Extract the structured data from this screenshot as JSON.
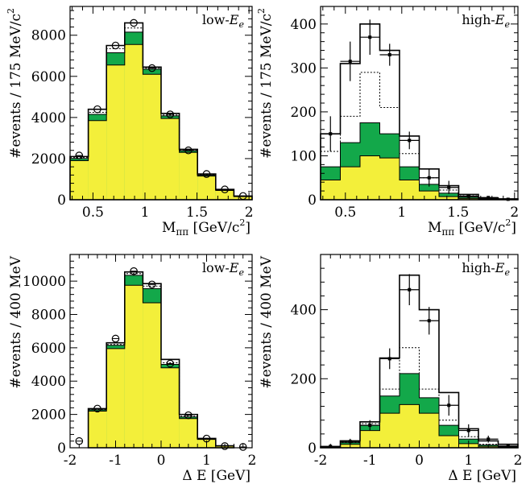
{
  "chart_data": [
    {
      "type": "bar",
      "panel": "top-left",
      "annotation": {
        "prefix": "low-",
        "symbol": "E",
        "subscript": "e"
      },
      "xlabel": {
        "symbol": "M",
        "subscript": "ππ",
        "unit_open": "[GeV/c",
        "unit_sup": "2",
        "unit_close": "]"
      },
      "ylabel": "#events / 175 MeV/c",
      "ylabel_sup": "2",
      "xlim": [
        0.28,
        2.03
      ],
      "ylim": [
        0,
        9400
      ],
      "xticks": [
        0.5,
        1,
        1.5,
        2
      ],
      "xtick_labels": [
        "0.5",
        "1",
        "1.5",
        "2"
      ],
      "yticks": [
        0,
        2000,
        4000,
        6000,
        8000
      ],
      "ytick_labels": [
        "0",
        "2000",
        "4000",
        "6000",
        "8000"
      ],
      "bin_edges": [
        0.28,
        0.455,
        0.63,
        0.805,
        0.98,
        1.155,
        1.33,
        1.505,
        1.68,
        1.855,
        2.03
      ],
      "series": [
        {
          "role": "yellow",
          "values": [
            1900,
            3850,
            6550,
            7550,
            6100,
            3950,
            2300,
            1150,
            450,
            150
          ]
        },
        {
          "role": "green",
          "values": [
            2000,
            4150,
            7150,
            8150,
            6350,
            4080,
            2380,
            1200,
            475,
            165
          ]
        },
        {
          "role": "dotted",
          "values": [
            2050,
            4250,
            7350,
            8350,
            6400,
            4120,
            2420,
            1220,
            485,
            170
          ]
        },
        {
          "role": "total",
          "values": [
            2100,
            4400,
            7500,
            8600,
            6450,
            4200,
            2450,
            1250,
            500,
            180
          ]
        }
      ],
      "points": {
        "x": [
          0.3675,
          0.5425,
          0.7175,
          0.8925,
          1.0675,
          1.2425,
          1.4175,
          1.5925,
          1.7675,
          1.9425
        ],
        "y": [
          2150,
          4400,
          7500,
          8600,
          6400,
          4150,
          2400,
          1250,
          500,
          180
        ],
        "err": [
          0,
          0,
          0,
          0,
          0,
          0,
          0,
          0,
          0,
          0
        ],
        "marker": "open-circle"
      }
    },
    {
      "type": "bar",
      "panel": "top-right",
      "annotation": {
        "prefix": "high-",
        "symbol": "E",
        "subscript": "e"
      },
      "xlabel": {
        "symbol": "M",
        "subscript": "ππ",
        "unit_open": "[GeV/c",
        "unit_sup": "2",
        "unit_close": "]"
      },
      "ylabel": "#events / 175 MeV/c",
      "ylabel_sup": "2",
      "xlim": [
        0.28,
        2.03
      ],
      "ylim": [
        0,
        440
      ],
      "xticks": [
        0.5,
        1,
        1.5,
        2
      ],
      "xtick_labels": [
        "0.5",
        "1",
        "1.5",
        "2"
      ],
      "yticks": [
        0,
        100,
        200,
        300,
        400
      ],
      "ytick_labels": [
        "0",
        "100",
        "200",
        "300",
        "400"
      ],
      "bin_edges": [
        0.28,
        0.455,
        0.63,
        0.805,
        0.98,
        1.155,
        1.33,
        1.505,
        1.68,
        1.855,
        2.03
      ],
      "series": [
        {
          "role": "yellow",
          "values": [
            45,
            75,
            100,
            95,
            45,
            20,
            7,
            3,
            1,
            0
          ]
        },
        {
          "role": "green",
          "values": [
            75,
            130,
            175,
            150,
            75,
            35,
            15,
            6,
            2,
            1
          ]
        },
        {
          "role": "dotted",
          "values": [
            110,
            190,
            290,
            210,
            105,
            50,
            22,
            9,
            3,
            1
          ]
        },
        {
          "role": "total",
          "values": [
            150,
            310,
            400,
            340,
            145,
            70,
            32,
            12,
            4,
            2
          ]
        }
      ],
      "points": {
        "x": [
          0.3675,
          0.5425,
          0.7175,
          0.8925,
          1.0675,
          1.2425,
          1.4175,
          1.5925,
          1.7675,
          1.9425
        ],
        "y": [
          150,
          315,
          370,
          330,
          135,
          50,
          28,
          8,
          5,
          1
        ],
        "err": [
          40,
          45,
          40,
          25,
          20,
          20,
          15,
          4,
          3,
          1
        ],
        "marker": "filled-square"
      }
    },
    {
      "type": "bar",
      "panel": "bottom-left",
      "annotation": {
        "prefix": "low-",
        "symbol": "E",
        "subscript": "e"
      },
      "xlabel": {
        "symbol": "Δ E",
        "subscript": "",
        "unit_open": "[GeV]",
        "unit_sup": "",
        "unit_close": ""
      },
      "ylabel": "#events / 400 MeV",
      "ylabel_sup": "",
      "xlim": [
        -2,
        2
      ],
      "ylim": [
        0,
        11600
      ],
      "xticks": [
        -2,
        -1,
        0,
        1,
        2
      ],
      "xtick_labels": [
        "-2",
        "-1",
        "0",
        "1",
        "2"
      ],
      "yticks": [
        0,
        2000,
        4000,
        6000,
        8000,
        10000
      ],
      "ytick_labels": [
        "0",
        "2000",
        "4000",
        "6000",
        "8000",
        "10000"
      ],
      "bin_edges": [
        -1.6,
        -1.2,
        -0.8,
        -0.4,
        0.0,
        0.4,
        0.8,
        1.2,
        1.6
      ],
      "series": [
        {
          "role": "yellow",
          "values": [
            2200,
            5950,
            9750,
            8700,
            4800,
            1750,
            500,
            100
          ]
        },
        {
          "role": "green",
          "values": [
            2280,
            6150,
            10350,
            9550,
            5000,
            1850,
            530,
            110
          ]
        },
        {
          "role": "dotted",
          "values": [
            2300,
            6200,
            10450,
            9700,
            5100,
            1900,
            540,
            112
          ]
        },
        {
          "role": "total",
          "values": [
            2350,
            6300,
            10550,
            9850,
            5300,
            2000,
            560,
            120
          ]
        }
      ],
      "points": {
        "x": [
          -1.8,
          -1.4,
          -1.0,
          -0.6,
          -0.2,
          0.2,
          0.6,
          1.0,
          1.4,
          1.8
        ],
        "y": [
          400,
          2350,
          6550,
          10600,
          9800,
          5050,
          1950,
          550,
          100,
          50
        ],
        "err": [
          0,
          0,
          0,
          0,
          0,
          0,
          0,
          0,
          0,
          0
        ],
        "marker": "open-circle"
      }
    },
    {
      "type": "bar",
      "panel": "bottom-right",
      "annotation": {
        "prefix": "high-",
        "symbol": "E",
        "subscript": "e"
      },
      "xlabel": {
        "symbol": "Δ E",
        "subscript": "",
        "unit_open": "[GeV]",
        "unit_sup": "",
        "unit_close": ""
      },
      "ylabel": "#events / 400 MeV",
      "ylabel_sup": "",
      "xlim": [
        -2,
        2
      ],
      "ylim": [
        0,
        560
      ],
      "xticks": [
        -2,
        -1,
        0,
        1,
        2
      ],
      "xtick_labels": [
        "-2",
        "-1",
        "0",
        "1",
        "2"
      ],
      "yticks": [
        0,
        200,
        400
      ],
      "ytick_labels": [
        "0",
        "200",
        "400"
      ],
      "bin_edges": [
        -2.0,
        -1.6,
        -1.2,
        -0.8,
        -0.4,
        0.0,
        0.4,
        0.8,
        1.2,
        1.6,
        2.0
      ],
      "series": [
        {
          "role": "yellow",
          "values": [
            2,
            10,
            50,
            100,
            125,
            100,
            35,
            12,
            4,
            1
          ]
        },
        {
          "role": "green",
          "values": [
            3,
            15,
            65,
            150,
            215,
            145,
            65,
            25,
            8,
            3
          ]
        },
        {
          "role": "dotted",
          "values": [
            3,
            16,
            70,
            170,
            290,
            170,
            80,
            32,
            10,
            4
          ]
        },
        {
          "role": "total",
          "values": [
            3,
            20,
            75,
            260,
            500,
            400,
            160,
            55,
            20,
            10
          ]
        }
      ],
      "points": {
        "x": [
          -1.8,
          -1.4,
          -1.0,
          -0.6,
          -0.2,
          0.2,
          0.6,
          1.0,
          1.4,
          1.8
        ],
        "y": [
          4,
          18,
          65,
          258,
          458,
          368,
          123,
          50,
          25,
          5
        ],
        "err": [
          3,
          8,
          15,
          30,
          45,
          40,
          30,
          18,
          10,
          4
        ],
        "marker": "filled-square"
      }
    }
  ],
  "colors": {
    "yellow": "#f3ef3a",
    "green": "#13a84a",
    "line": "#000000"
  }
}
